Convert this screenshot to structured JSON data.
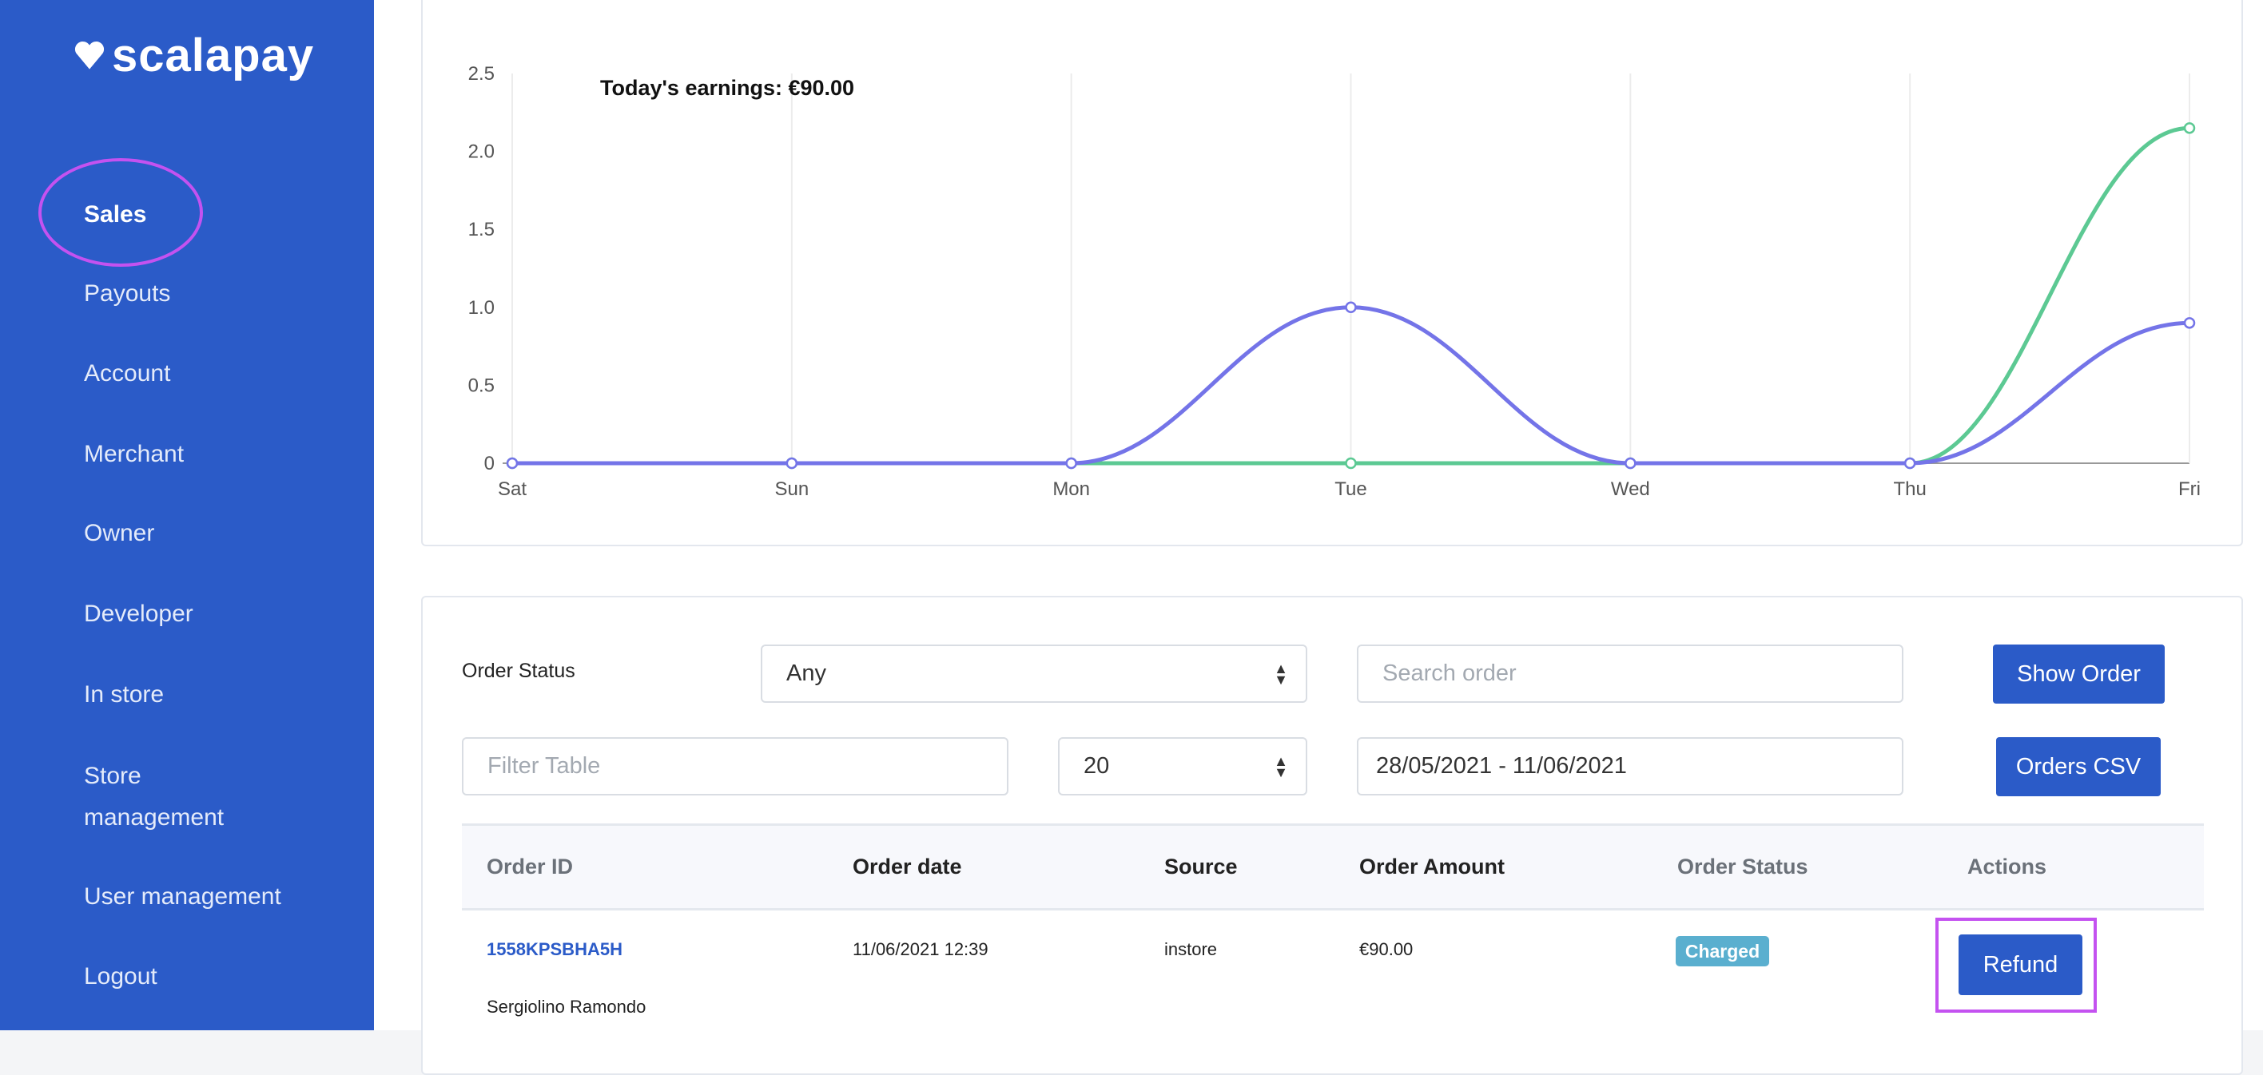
{
  "brand": "scalapay",
  "sidebar": {
    "items": [
      {
        "label": "Sales",
        "active": true
      },
      {
        "label": "Payouts"
      },
      {
        "label": "Account"
      },
      {
        "label": "Merchant"
      },
      {
        "label": "Owner"
      },
      {
        "label": "Developer"
      },
      {
        "label": "In store"
      },
      {
        "label": "Store management"
      },
      {
        "label": "User management"
      },
      {
        "label": "Logout"
      }
    ]
  },
  "colors": {
    "brand": "#2B5BC8",
    "series_purple": "#7474E8",
    "series_green": "#5CC993",
    "highlight": "#C452F0",
    "badge": "#5AAFCF"
  },
  "chart_data": {
    "type": "line",
    "title": "Today's earnings: €90.00",
    "categories": [
      "Sat",
      "Sun",
      "Mon",
      "Tue",
      "Wed",
      "Thu",
      "Fri"
    ],
    "yticks": [
      "0",
      "0.5",
      "1.0",
      "1.5",
      "2.0",
      "2.5"
    ],
    "ylim": [
      0,
      2.5
    ],
    "series": [
      {
        "name": "green",
        "color": "#5CC993",
        "values": [
          0,
          0,
          0,
          0,
          0,
          0,
          2.15
        ]
      },
      {
        "name": "purple",
        "color": "#7474E8",
        "values": [
          0,
          0,
          0,
          1,
          0,
          0,
          0.9
        ]
      }
    ]
  },
  "filters": {
    "order_status_label": "Order Status",
    "status_value": "Any",
    "search_placeholder": "Search order",
    "show_order": "Show Order",
    "filter_placeholder": "Filter Table",
    "page_size": "20",
    "date_range": "28/05/2021 - 11/06/2021",
    "orders_csv": "Orders CSV"
  },
  "table": {
    "headers": [
      "Order ID",
      "Order date",
      "Source",
      "Order Amount",
      "Order Status",
      "Actions"
    ],
    "rows": [
      {
        "order_id": "1558KPSBHA5H",
        "customer": "Sergiolino Ramondo",
        "date": "11/06/2021 12:39",
        "source": "instore",
        "amount": "€90.00",
        "status": "Charged",
        "action": "Refund"
      }
    ]
  }
}
